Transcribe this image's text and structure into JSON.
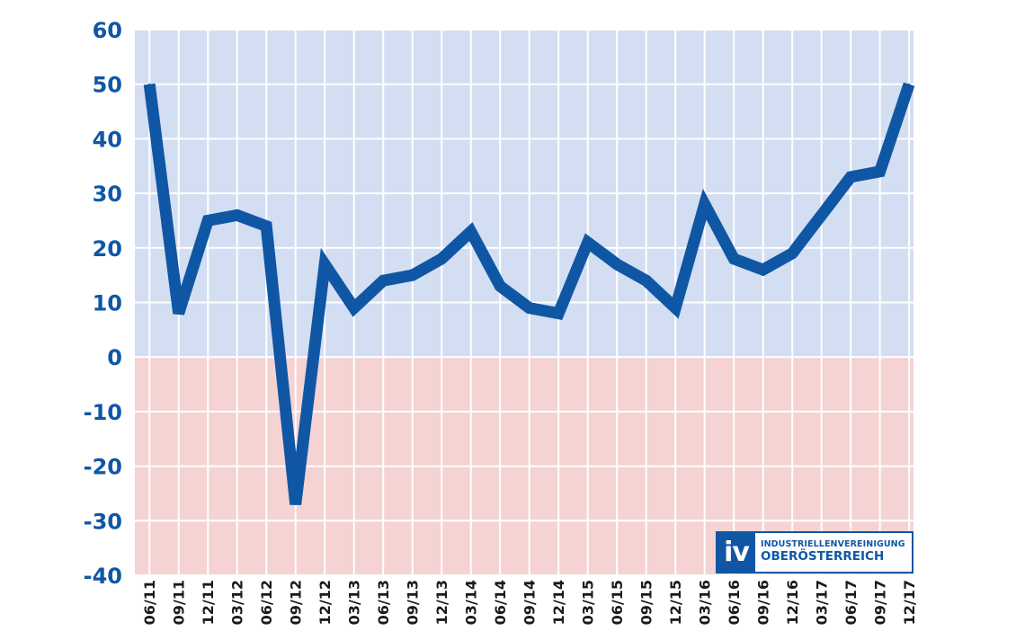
{
  "chart_data": {
    "type": "line",
    "categories": [
      "06/11",
      "09/11",
      "12/11",
      "03/12",
      "06/12",
      "09/12",
      "12/12",
      "03/13",
      "06/13",
      "09/13",
      "12/13",
      "03/14",
      "06/14",
      "09/14",
      "12/14",
      "03/15",
      "06/15",
      "09/15",
      "12/15",
      "03/16",
      "06/16",
      "09/16",
      "12/16",
      "03/17",
      "06/17",
      "09/17",
      "12/17"
    ],
    "series": [
      {
        "values": [
          50,
          8,
          25,
          26,
          24,
          -27,
          17,
          9,
          14,
          15,
          18,
          23,
          13,
          9,
          8,
          21,
          17,
          14,
          9,
          28,
          18,
          16,
          19,
          26,
          33,
          34,
          50
        ],
        "color": "#0f57a5"
      }
    ],
    "ylim": [
      -40,
      60
    ],
    "yticks": [
      "60",
      "50",
      "40",
      "30",
      "20",
      "10",
      "0",
      "-10",
      "-20",
      "-30",
      "-40"
    ],
    "positive_background": "#d3def2",
    "negative_background": "#f5d3d2",
    "grid": true,
    "title": "",
    "xlabel": "",
    "ylabel": ""
  },
  "logo": {
    "mark": "iv",
    "line1": "INDUSTRIELLENVEREINIGUNG",
    "line2": "OBERÖSTERREICH"
  }
}
